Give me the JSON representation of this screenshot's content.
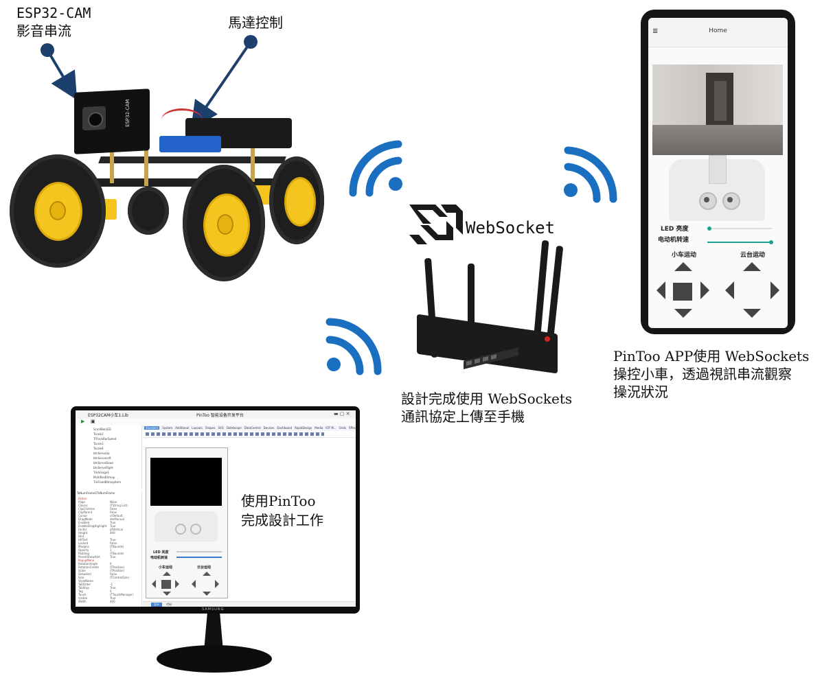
{
  "labels": {
    "esp32_cam": [
      "ESP32-CAM",
      "影音串流"
    ],
    "motor_control": "馬達控制",
    "websocket_logo": "WebSocket",
    "upload_caption": [
      "設計完成使用 WebSockets",
      "通訊協定上傳至手機"
    ],
    "app_caption": [
      "PinToo APP使用 WebSockets",
      "操控小車，透過視訊串流觀察",
      "操況狀況"
    ],
    "design_caption": [
      "使用PinToo",
      "完成設計工作"
    ]
  },
  "phone_app": {
    "menu_icon": "≣",
    "title": "Home",
    "led_label": "LED 亮度",
    "motor_label": "电动机转速",
    "car_move_label": "小车运动",
    "gimbal_label": "云台运动"
  },
  "ide": {
    "tab_title": "ESP32CAM小车1.Lib",
    "window_title": "PinToo 智能设备开发平台",
    "toolbar_tabs": [
      "Standard",
      "System",
      "Additional",
      "Layouts",
      "Shapes",
      "SVG",
      "Datebcope",
      "DataControl",
      "Devices",
      "Dashboard",
      "RapidDesign",
      "Media",
      "IOT M...",
      "Grids",
      "Effects"
    ],
    "properties_header": "TeNumFrame1TkNumFrame",
    "tree_items": [
      "ScrollBarLED",
      "Tscale2",
      "TrTrackBarSpeed",
      "Tscale3",
      "Tscale4",
      "btnServoUp",
      "btnServoLeft",
      "btnServoDown",
      "btnServoRight",
      "TmAmage1",
      "MultiResBitmap",
      "TmFixedBitmapItem"
    ],
    "prop_names": [
      "Action",
      "Align",
      "Classic",
      "ClipChildren",
      "ClipParent",
      "Cursor",
      "DragMode",
      "Enabled",
      "EnableDragHighlight",
      "Factor",
      "Height",
      "Hint",
      "HitTest",
      "Locked",
      "Margins",
      "Opacity",
      "Padding",
      "ParentShowHint",
      "PopupMenu",
      "RotationAngle",
      "RotationCenter",
      "Scale",
      "ShowHint",
      "Size",
      "StyleName",
      "TabOrder",
      "TabStop",
      "Tag",
      "Touch",
      "Visible",
      "Width"
    ],
    "prop_values": [
      "",
      "None",
      "(TString List)",
      "False",
      "False",
      "crDefault",
      "dmManual",
      "True",
      "True",
      "pfVertical",
      "400",
      "",
      "True",
      "False",
      "(TBounds)",
      "1",
      "(TBounds)",
      "True",
      "",
      "0",
      "(TPosition)",
      "(TPosition)",
      "False",
      "(TControlSize)",
      "",
      "-1",
      "True",
      "0",
      "(TTouchManager)",
      "True",
      "400"
    ],
    "led_label": "LED 亮度",
    "motor_label": "电动机转速",
    "car_move_label": "小车运动",
    "gimbal_label": "云台运动",
    "bottom_tabs": [
      "设计",
      "代码"
    ],
    "brand": "SAMSUNG"
  },
  "colors": {
    "wifi_blue": "#1b6fc0",
    "callout_navy": "#1d3f6e",
    "car_yellow": "#f4c51f"
  }
}
